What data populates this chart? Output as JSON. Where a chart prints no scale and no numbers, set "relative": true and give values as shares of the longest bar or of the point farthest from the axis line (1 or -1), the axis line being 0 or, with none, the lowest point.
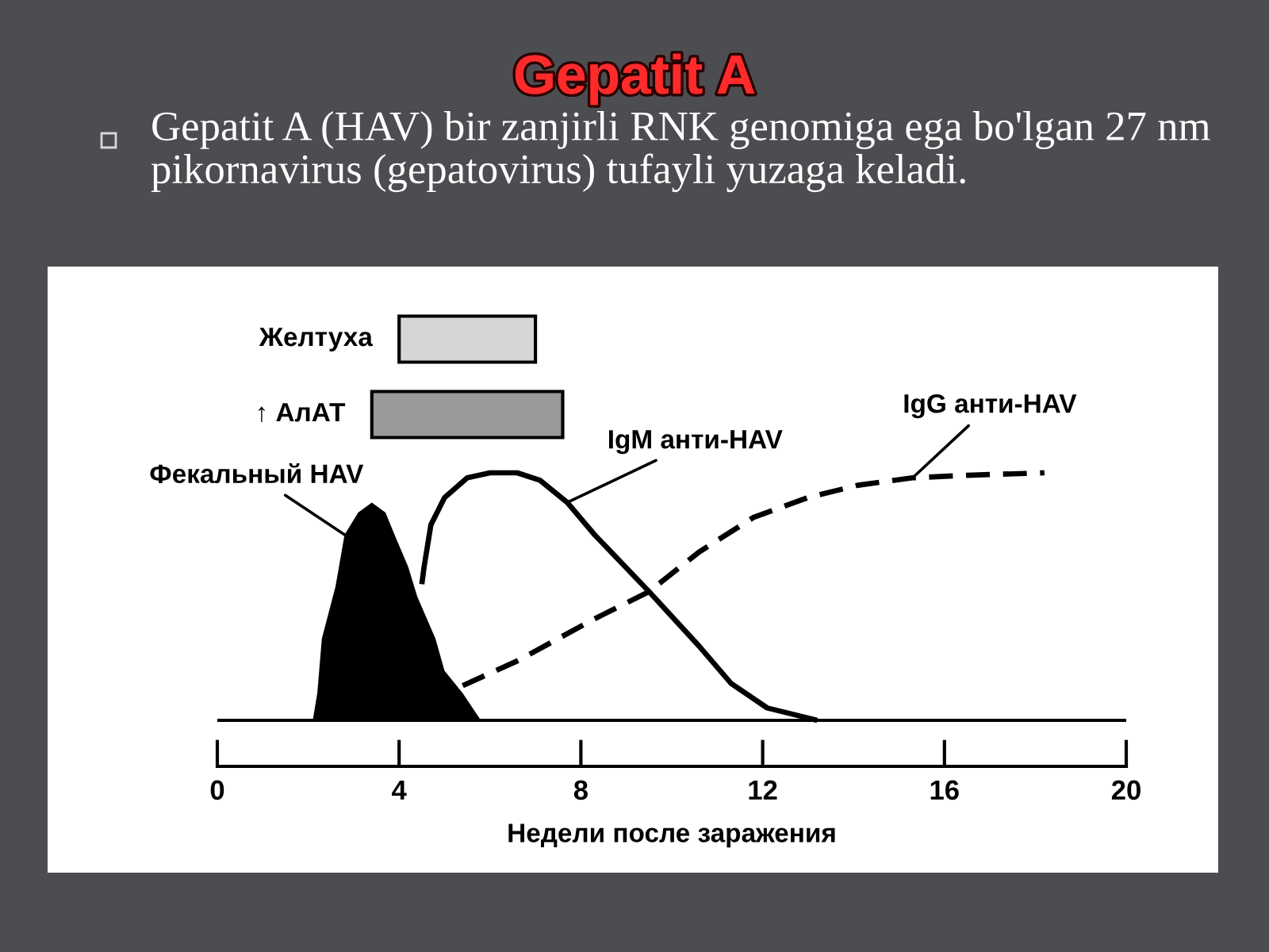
{
  "chart_data": [
    {
      "type": "bar",
      "title": "Gepatit A",
      "subtitle": "Gepatit A (HAV) bir zanjirli RNK genomiga ega bo'lgan 27 nm pikornavirus (gepatovirus) tufayli yuzaga keladi.",
      "orientation": "horizontal",
      "categories": [
        "Желтуха",
        "↑ АлАТ"
      ],
      "base": [
        4.0,
        3.4
      ],
      "values": [
        3.0,
        4.2
      ],
      "colors": [
        "#d6d6d6",
        "#9a9a9a"
      ],
      "xlim": [
        0,
        20
      ],
      "tick_labels": false
    },
    {
      "type": "line",
      "relative": true,
      "xlabel": "Недели после заражения",
      "xlim": [
        0,
        20
      ],
      "xticks": [
        0,
        4,
        8,
        12,
        16,
        20
      ],
      "tick_labels": "x",
      "series": [
        {
          "name": "Фекальный HAV",
          "type": "area",
          "color": "#000000",
          "x": [
            2.1,
            2.2,
            2.3,
            2.6,
            2.8,
            3.1,
            3.4,
            3.7,
            3.9,
            4.2,
            4.4,
            4.8,
            5.0,
            5.4,
            5.8
          ],
          "values": [
            0,
            0.11,
            0.33,
            0.54,
            0.75,
            0.84,
            0.88,
            0.84,
            0.75,
            0.62,
            0.5,
            0.33,
            0.2,
            0.11,
            0
          ]
        },
        {
          "name": "IgM анти-HAV",
          "color": "#000000",
          "line_style": "solid",
          "x": [
            4.5,
            4.55,
            4.7,
            5.0,
            5.5,
            6.0,
            6.6,
            7.1,
            7.7,
            8.3,
            9.5,
            10.6,
            11.3,
            12.1,
            13.2
          ],
          "values": [
            0.55,
            0.62,
            0.79,
            0.9,
            0.98,
            1.0,
            1.0,
            0.97,
            0.88,
            0.75,
            0.52,
            0.3,
            0.15,
            0.05,
            0
          ]
        },
        {
          "name": "IgG анти-HAV",
          "color": "#000000",
          "line_style": "dashed",
          "x": [
            5.4,
            6.6,
            8.3,
            9.5,
            10.6,
            11.8,
            13.0,
            14.1,
            15.3,
            16.5,
            18.2
          ],
          "values": [
            0.14,
            0.24,
            0.41,
            0.52,
            0.68,
            0.82,
            0.9,
            0.95,
            0.98,
            0.99,
            1.0
          ]
        }
      ]
    }
  ]
}
